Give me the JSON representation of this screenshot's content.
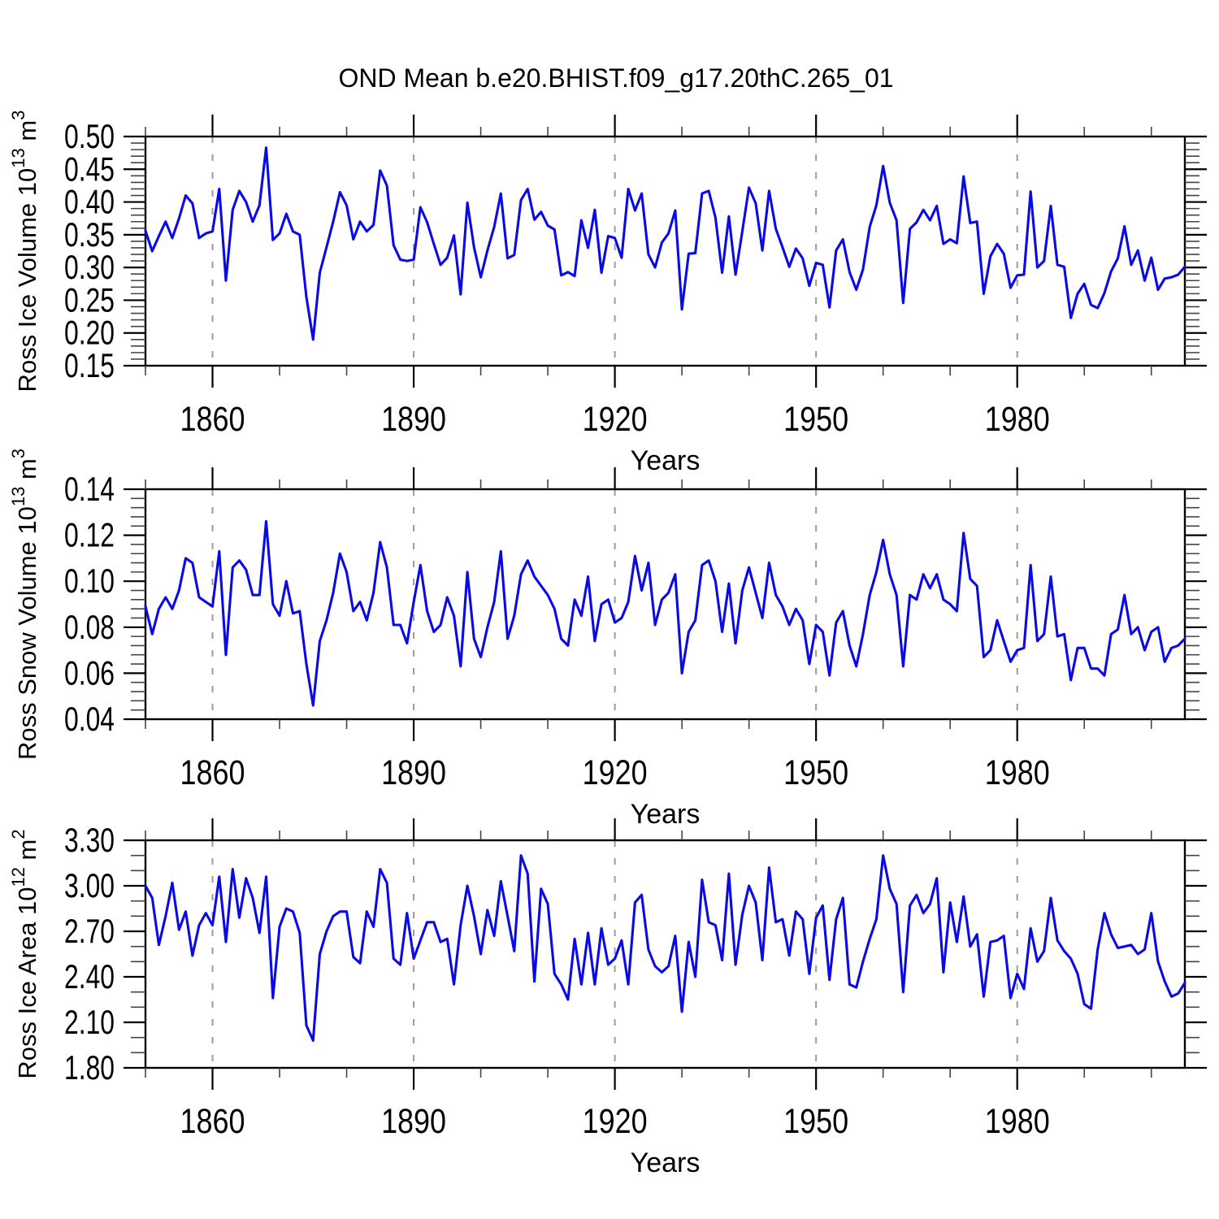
{
  "title": "OND Mean b.e20.BHIST.f09_g17.20thC.265_01",
  "colors": {
    "line": "#0a0ae6",
    "grid": "#9b9b9b",
    "frame": "#000000",
    "minor_tick": "#444444"
  },
  "chart_data": [
    {
      "type": "line",
      "title": "OND Mean b.e20.BHIST.f09_g17.20thC.265_01",
      "ylabel": "Ross Ice Volume 10^13 m^3",
      "ylabel_parts": [
        [
          "t",
          "Ross Ice Volume 10"
        ],
        [
          "s",
          "13"
        ],
        [
          "t",
          " m"
        ],
        [
          "s",
          "3"
        ]
      ],
      "xlabel": "Years",
      "x": {
        "start": 1850,
        "end": 2005,
        "step": 1
      },
      "xticks": [
        1860,
        1890,
        1920,
        1950,
        1980
      ],
      "xminor_step": 10,
      "ylim": [
        0.15,
        0.5
      ],
      "ytick_major": 0.05,
      "ytick_minor": 0.01,
      "ytick_format": 2,
      "grid": "dashed-vertical-at-major-x",
      "legend": "none",
      "values": [
        0.356,
        0.325,
        0.348,
        0.37,
        0.345,
        0.375,
        0.41,
        0.398,
        0.345,
        0.352,
        0.355,
        0.42,
        0.28,
        0.388,
        0.417,
        0.4,
        0.37,
        0.395,
        0.483,
        0.342,
        0.352,
        0.382,
        0.355,
        0.35,
        0.255,
        0.19,
        0.292,
        0.331,
        0.37,
        0.415,
        0.395,
        0.343,
        0.37,
        0.355,
        0.365,
        0.448,
        0.425,
        0.334,
        0.312,
        0.31,
        0.312,
        0.392,
        0.369,
        0.336,
        0.304,
        0.315,
        0.349,
        0.259,
        0.399,
        0.331,
        0.285,
        0.326,
        0.362,
        0.413,
        0.314,
        0.319,
        0.403,
        0.42,
        0.373,
        0.385,
        0.364,
        0.358,
        0.288,
        0.293,
        0.287,
        0.372,
        0.33,
        0.388,
        0.292,
        0.348,
        0.345,
        0.315,
        0.42,
        0.387,
        0.413,
        0.32,
        0.3,
        0.338,
        0.352,
        0.387,
        0.236,
        0.321,
        0.322,
        0.413,
        0.417,
        0.376,
        0.292,
        0.378,
        0.289,
        0.355,
        0.422,
        0.398,
        0.326,
        0.417,
        0.359,
        0.331,
        0.301,
        0.329,
        0.314,
        0.272,
        0.307,
        0.304,
        0.239,
        0.326,
        0.343,
        0.293,
        0.266,
        0.297,
        0.362,
        0.395,
        0.455,
        0.399,
        0.372,
        0.246,
        0.359,
        0.369,
        0.388,
        0.372,
        0.394,
        0.336,
        0.343,
        0.337,
        0.439,
        0.368,
        0.37,
        0.26,
        0.317,
        0.336,
        0.321,
        0.269,
        0.288,
        0.289,
        0.416,
        0.3,
        0.31,
        0.394,
        0.304,
        0.301,
        0.223,
        0.26,
        0.275,
        0.243,
        0.238,
        0.261,
        0.294,
        0.314,
        0.363,
        0.304,
        0.326,
        0.28,
        0.315,
        0.266,
        0.283,
        0.285,
        0.289,
        0.301
      ]
    },
    {
      "type": "line",
      "ylabel": "Ross Snow Volume 10^13 m^3",
      "ylabel_parts": [
        [
          "t",
          "Ross Snow Volume 10"
        ],
        [
          "s",
          "13"
        ],
        [
          "t",
          " m"
        ],
        [
          "s",
          "3"
        ]
      ],
      "xlabel": "Years",
      "x": {
        "start": 1850,
        "end": 2005,
        "step": 1
      },
      "xticks": [
        1860,
        1890,
        1920,
        1950,
        1980
      ],
      "xminor_step": 10,
      "ylim": [
        0.04,
        0.14
      ],
      "ytick_major": 0.02,
      "ytick_minor": 0.004,
      "ytick_format": 2,
      "grid": "dashed-vertical-at-major-x",
      "legend": "none",
      "values": [
        0.089,
        0.077,
        0.088,
        0.093,
        0.088,
        0.096,
        0.11,
        0.108,
        0.093,
        0.091,
        0.089,
        0.113,
        0.068,
        0.106,
        0.109,
        0.105,
        0.094,
        0.094,
        0.126,
        0.09,
        0.085,
        0.1,
        0.086,
        0.087,
        0.064,
        0.046,
        0.074,
        0.083,
        0.095,
        0.112,
        0.104,
        0.087,
        0.091,
        0.083,
        0.095,
        0.117,
        0.106,
        0.081,
        0.081,
        0.073,
        0.091,
        0.107,
        0.087,
        0.078,
        0.081,
        0.093,
        0.085,
        0.063,
        0.104,
        0.075,
        0.067,
        0.08,
        0.091,
        0.113,
        0.075,
        0.085,
        0.103,
        0.109,
        0.102,
        0.098,
        0.094,
        0.088,
        0.075,
        0.072,
        0.092,
        0.085,
        0.102,
        0.074,
        0.09,
        0.092,
        0.082,
        0.084,
        0.091,
        0.111,
        0.096,
        0.108,
        0.081,
        0.092,
        0.095,
        0.103,
        0.06,
        0.078,
        0.083,
        0.107,
        0.109,
        0.1,
        0.078,
        0.099,
        0.073,
        0.096,
        0.106,
        0.095,
        0.084,
        0.108,
        0.094,
        0.089,
        0.081,
        0.088,
        0.083,
        0.064,
        0.081,
        0.078,
        0.059,
        0.082,
        0.087,
        0.072,
        0.063,
        0.077,
        0.094,
        0.104,
        0.118,
        0.103,
        0.094,
        0.063,
        0.094,
        0.092,
        0.103,
        0.097,
        0.103,
        0.092,
        0.09,
        0.087,
        0.121,
        0.101,
        0.098,
        0.067,
        0.07,
        0.083,
        0.074,
        0.065,
        0.07,
        0.071,
        0.107,
        0.074,
        0.077,
        0.102,
        0.076,
        0.077,
        0.057,
        0.071,
        0.071,
        0.062,
        0.062,
        0.059,
        0.077,
        0.079,
        0.094,
        0.077,
        0.08,
        0.07,
        0.078,
        0.08,
        0.065,
        0.071,
        0.072,
        0.075
      ]
    },
    {
      "type": "line",
      "ylabel": "Ross Ice Area 10^12 m^2",
      "ylabel_parts": [
        [
          "t",
          "Ross Ice Area 10"
        ],
        [
          "s",
          "12"
        ],
        [
          "t",
          " m"
        ],
        [
          "s",
          "2"
        ]
      ],
      "xlabel": "Years",
      "x": {
        "start": 1850,
        "end": 2005,
        "step": 1
      },
      "xticks": [
        1860,
        1890,
        1920,
        1950,
        1980
      ],
      "xminor_step": 10,
      "ylim": [
        1.8,
        3.3
      ],
      "ytick_major": 0.3,
      "ytick_minor": 0.1,
      "ytick_format": 2,
      "grid": "dashed-vertical-at-major-x",
      "legend": "none",
      "values": [
        3.0,
        2.92,
        2.61,
        2.8,
        3.02,
        2.71,
        2.83,
        2.54,
        2.74,
        2.82,
        2.74,
        3.06,
        2.63,
        3.11,
        2.79,
        3.05,
        2.92,
        2.69,
        3.06,
        2.26,
        2.73,
        2.85,
        2.83,
        2.69,
        2.08,
        1.98,
        2.55,
        2.7,
        2.8,
        2.83,
        2.83,
        2.53,
        2.49,
        2.83,
        2.73,
        3.11,
        3.02,
        2.52,
        2.48,
        2.82,
        2.52,
        2.64,
        2.76,
        2.76,
        2.63,
        2.65,
        2.35,
        2.74,
        3.0,
        2.8,
        2.55,
        2.84,
        2.67,
        3.03,
        2.8,
        2.57,
        3.2,
        3.08,
        2.37,
        2.98,
        2.88,
        2.42,
        2.35,
        2.25,
        2.65,
        2.35,
        2.69,
        2.35,
        2.72,
        2.48,
        2.52,
        2.64,
        2.35,
        2.89,
        2.94,
        2.58,
        2.47,
        2.43,
        2.47,
        2.67,
        2.17,
        2.63,
        2.4,
        3.04,
        2.76,
        2.74,
        2.51,
        3.08,
        2.48,
        2.81,
        3.0,
        2.89,
        2.51,
        3.12,
        2.76,
        2.78,
        2.54,
        2.83,
        2.78,
        2.42,
        2.79,
        2.87,
        2.38,
        2.78,
        2.92,
        2.35,
        2.33,
        2.5,
        2.65,
        2.78,
        3.2,
        2.98,
        2.88,
        2.3,
        2.87,
        2.94,
        2.82,
        2.88,
        3.05,
        2.43,
        2.89,
        2.63,
        2.93,
        2.6,
        2.68,
        2.27,
        2.63,
        2.64,
        2.67,
        2.26,
        2.42,
        2.32,
        2.72,
        2.5,
        2.57,
        2.92,
        2.64,
        2.57,
        2.52,
        2.42,
        2.22,
        2.19,
        2.58,
        2.82,
        2.68,
        2.59,
        2.6,
        2.61,
        2.55,
        2.58,
        2.82,
        2.5,
        2.37,
        2.27,
        2.29,
        2.36
      ]
    }
  ]
}
